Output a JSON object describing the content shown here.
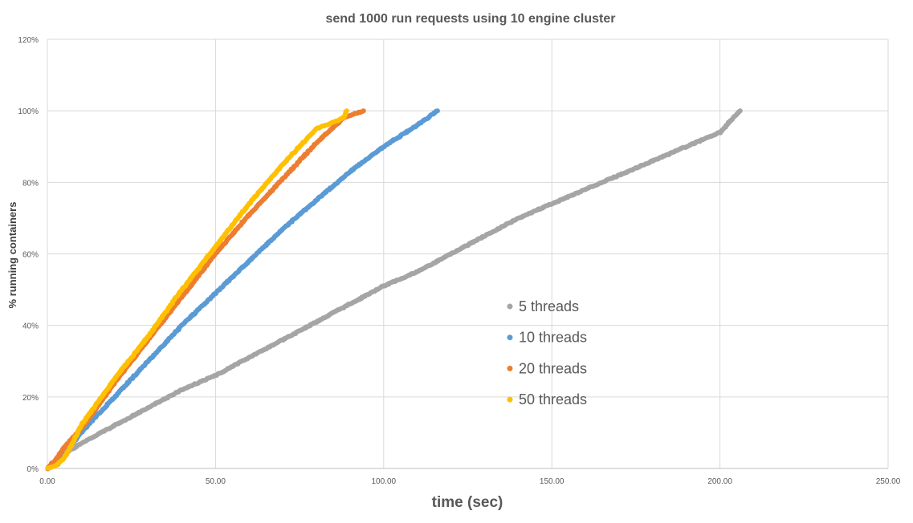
{
  "chart_data": {
    "type": "scatter",
    "title": "send 1000 run requests using 10 engine cluster",
    "xlabel": "time (sec)",
    "ylabel": "% running containers",
    "xlim": [
      0,
      250
    ],
    "ylim": [
      0,
      1.2
    ],
    "x_ticks": [
      "0.00",
      "50.00",
      "100.00",
      "150.00",
      "200.00",
      "250.00"
    ],
    "y_ticks": [
      "0%",
      "20%",
      "40%",
      "60%",
      "80%",
      "100%",
      "120%"
    ],
    "grid": true,
    "legend_position": "inside-right",
    "series": [
      {
        "name": "5 threads",
        "color": "#A5A5A5",
        "points": [
          [
            0,
            0
          ],
          [
            5,
            0.04
          ],
          [
            10,
            0.07
          ],
          [
            20,
            0.12
          ],
          [
            30,
            0.17
          ],
          [
            40,
            0.22
          ],
          [
            50,
            0.26
          ],
          [
            60,
            0.31
          ],
          [
            70,
            0.36
          ],
          [
            80,
            0.41
          ],
          [
            90,
            0.46
          ],
          [
            100,
            0.51
          ],
          [
            110,
            0.55
          ],
          [
            120,
            0.6
          ],
          [
            130,
            0.65
          ],
          [
            140,
            0.7
          ],
          [
            150,
            0.74
          ],
          [
            160,
            0.78
          ],
          [
            170,
            0.82
          ],
          [
            180,
            0.86
          ],
          [
            190,
            0.9
          ],
          [
            200,
            0.94
          ],
          [
            205,
            0.99
          ],
          [
            206,
            1.0
          ]
        ]
      },
      {
        "name": "10 threads",
        "color": "#5B9BD5",
        "points": [
          [
            0,
            0
          ],
          [
            3,
            0.01
          ],
          [
            5,
            0.04
          ],
          [
            10,
            0.1
          ],
          [
            20,
            0.2
          ],
          [
            30,
            0.3
          ],
          [
            40,
            0.4
          ],
          [
            50,
            0.49
          ],
          [
            60,
            0.58
          ],
          [
            70,
            0.67
          ],
          [
            80,
            0.75
          ],
          [
            90,
            0.83
          ],
          [
            100,
            0.9
          ],
          [
            110,
            0.96
          ],
          [
            116,
            1.0
          ]
        ]
      },
      {
        "name": "20 threads",
        "color": "#ED7D31",
        "points": [
          [
            0,
            0
          ],
          [
            3,
            0.03
          ],
          [
            5,
            0.06
          ],
          [
            8,
            0.09
          ],
          [
            10,
            0.11
          ],
          [
            20,
            0.24
          ],
          [
            30,
            0.36
          ],
          [
            40,
            0.48
          ],
          [
            50,
            0.6
          ],
          [
            60,
            0.71
          ],
          [
            70,
            0.81
          ],
          [
            80,
            0.91
          ],
          [
            88,
            0.98
          ],
          [
            94,
            1.0
          ]
        ]
      },
      {
        "name": "50 threads",
        "color": "#FFC000",
        "points": [
          [
            0,
            0
          ],
          [
            3,
            0.01
          ],
          [
            5,
            0.03
          ],
          [
            8,
            0.08
          ],
          [
            10,
            0.12
          ],
          [
            20,
            0.25
          ],
          [
            30,
            0.37
          ],
          [
            40,
            0.5
          ],
          [
            50,
            0.62
          ],
          [
            60,
            0.74
          ],
          [
            70,
            0.85
          ],
          [
            80,
            0.95
          ],
          [
            88,
            0.98
          ],
          [
            89,
            1.0
          ]
        ]
      }
    ]
  }
}
